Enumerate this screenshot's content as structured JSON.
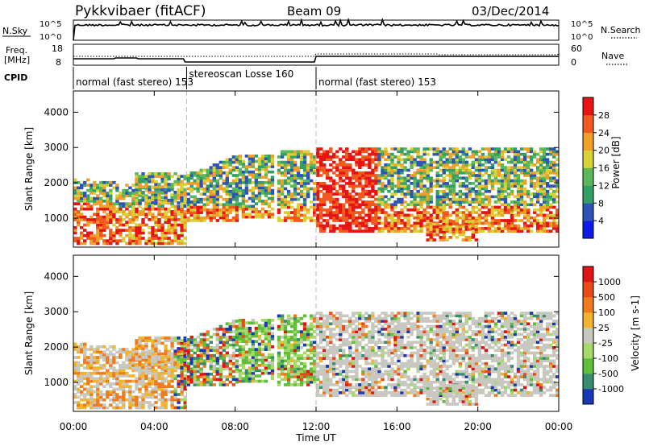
{
  "header": {
    "radar": "Pykkvibaer (fitACF)",
    "beam": "Beam 09",
    "date": "03/Dec/2014"
  },
  "noise_panel": {
    "left_label": "N.Sky",
    "left_ticks": [
      "10^5",
      "10^0"
    ],
    "right_ticks": [
      "10^5",
      "10^0"
    ],
    "right_label": "N.Search"
  },
  "freq_panel": {
    "left_label_line1": "Freq.",
    "left_label_line2": "[MHz]",
    "left_ticks": [
      "18",
      "8"
    ],
    "right_ticks": [
      "60",
      "0"
    ],
    "right_label": "Nave"
  },
  "cpid": {
    "label": "CPID",
    "segments": [
      {
        "label": "normal (fast stereo) 153",
        "start_hour": 0,
        "end_hour": 5.6
      },
      {
        "label": "stereoscan Losse 160",
        "start_hour": 5.6,
        "end_hour": 12.0
      },
      {
        "label": "normal (fast stereo) 153",
        "start_hour": 12.0,
        "end_hour": 24.0
      }
    ]
  },
  "chart_data": [
    {
      "type": "heatmap",
      "title": "",
      "xlabel": "Time UT",
      "ylabel": "Slant Range [km]",
      "x_range_hours": [
        0,
        24
      ],
      "x_ticks": [
        "00:00",
        "04:00",
        "08:00",
        "12:00",
        "16:00",
        "20:00",
        "00:00"
      ],
      "ylim": [
        180,
        4600
      ],
      "y_ticks": [
        1000,
        2000,
        3000,
        4000
      ],
      "colorbar": {
        "label": "Power [dB]",
        "ticks": [
          "4",
          "8",
          "12",
          "16",
          "20",
          "24",
          "28"
        ],
        "colors": [
          "#0d1ae8",
          "#2e54b8",
          "#34a067",
          "#5cb85a",
          "#d8d238",
          "#f0a028",
          "#f05a1e",
          "#e61414"
        ]
      }
    },
    {
      "type": "heatmap",
      "title": "",
      "xlabel": "Time UT",
      "ylabel": "Slant Range [km]",
      "x_range_hours": [
        0,
        24
      ],
      "x_ticks": [
        "00:00",
        "04:00",
        "08:00",
        "12:00",
        "16:00",
        "20:00",
        "00:00"
      ],
      "ylim": [
        180,
        4600
      ],
      "y_ticks": [
        1000,
        2000,
        3000,
        4000
      ],
      "colorbar": {
        "label": "Velocity [m s-1]",
        "ticks": [
          "1000",
          "500",
          "100",
          "25",
          "-25",
          "-100",
          "-500",
          "-1000"
        ],
        "colors": [
          "#1a37b4",
          "#3a8c6e",
          "#60be3c",
          "#a6d86a",
          "#c8c8c0",
          "#f0b430",
          "#f07c20",
          "#e84a1a",
          "#e01414"
        ]
      }
    }
  ]
}
